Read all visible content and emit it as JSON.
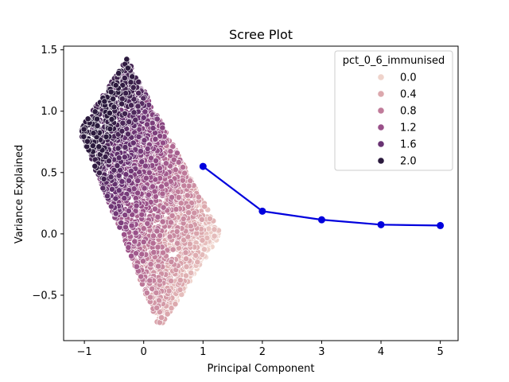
{
  "chart_data": {
    "type": "scatter",
    "title": "Scree Plot",
    "xlabel": "Principal Component",
    "ylabel": "Variance Explained",
    "xlim": [
      -1.35,
      5.3
    ],
    "ylim": [
      -0.87,
      1.53
    ],
    "xticks": [
      -1,
      0,
      1,
      2,
      3,
      4,
      5
    ],
    "yticks": [
      -0.5,
      0.0,
      0.5,
      1.0,
      1.5
    ],
    "xtick_labels": [
      "−1",
      "0",
      "1",
      "2",
      "3",
      "4",
      "5"
    ],
    "ytick_labels": [
      "−0.5",
      "0.0",
      "0.5",
      "1.0",
      "1.5"
    ],
    "line_series": {
      "name": "",
      "color": "#0000dd",
      "x": [
        1,
        2,
        3,
        4,
        5
      ],
      "y": [
        0.55,
        0.185,
        0.115,
        0.075,
        0.068
      ]
    },
    "scatter_series": {
      "hue_variable": "pct_0_6_immunised",
      "hue_range": [
        0.0,
        2.2
      ],
      "color_low": "#efd3cb",
      "color_high": "#2b1a3d",
      "shape_vertices_xy": [
        [
          -1.08,
          0.84
        ],
        [
          -0.28,
          1.43
        ],
        [
          0.72,
          0.52
        ],
        [
          1.3,
          0.0
        ],
        [
          0.27,
          -0.77
        ]
      ],
      "approximate_point_count": 2800,
      "hue_model": "increases toward upper-left of the point cloud"
    },
    "legend": {
      "title": "pct_0_6_immunised",
      "position": "top-right",
      "entries": [
        {
          "label": "0.0",
          "color": "#efd3cb"
        },
        {
          "label": "0.4",
          "color": "#dca8ad"
        },
        {
          "label": "0.8",
          "color": "#c07b9a"
        },
        {
          "label": "1.2",
          "color": "#995089"
        },
        {
          "label": "1.6",
          "color": "#693373"
        },
        {
          "label": "2.0",
          "color": "#2b1a3d"
        }
      ]
    }
  }
}
